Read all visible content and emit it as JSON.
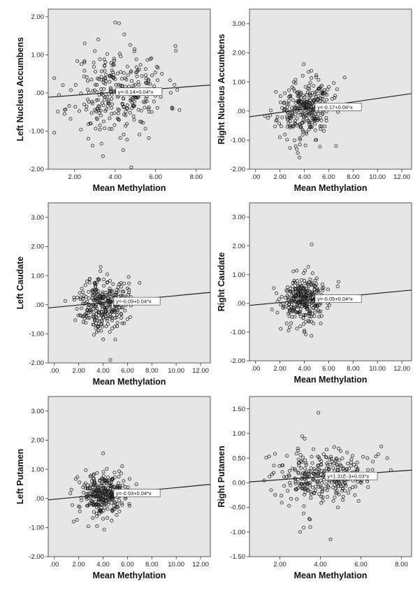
{
  "figure": {
    "background": "#ffffff",
    "plot_background": "#e6e6e6",
    "point_color": "#1a1a1a",
    "line_color": "#222222"
  },
  "chart_data": [
    {
      "type": "scatter",
      "id": "left-nucleus-accumbens",
      "xlabel": "Mean Methylation",
      "ylabel": "Left Nucleus Accumbens",
      "xlim": [
        0.7,
        8.7
      ],
      "ylim": [
        -2.0,
        2.2
      ],
      "xticks": [
        2,
        4,
        6,
        8
      ],
      "xtick_labels": [
        "2.00",
        "4.00",
        "6.00",
        "8.00"
      ],
      "yticks": [
        -2,
        -1,
        0,
        1,
        2
      ],
      "ytick_labels": [
        "-2.00",
        "-1.00",
        ".00",
        "1.00",
        "2.00"
      ],
      "fit": {
        "intercept": -0.14,
        "slope": 0.04,
        "label": "y=-0.14+0.04*x",
        "label_at_x": 4.1
      },
      "cloud": {
        "n": 300,
        "x_mean": 4.2,
        "x_sd": 1.2,
        "y_sd": 0.55,
        "seed": 11
      },
      "outliers": [
        [
          4.0,
          1.85
        ],
        [
          4.2,
          1.83
        ],
        [
          2.5,
          1.3
        ],
        [
          4.4,
          -1.5
        ],
        [
          4.8,
          -1.95
        ],
        [
          3.0,
          1.1
        ]
      ]
    },
    {
      "type": "scatter",
      "id": "right-nucleus-accumbens",
      "xlabel": "Mean Methylation",
      "ylabel": "Right Nucleus Accumbens",
      "xlim": [
        -0.5,
        12.8
      ],
      "ylim": [
        -2.0,
        3.5
      ],
      "xticks": [
        0,
        2,
        4,
        6,
        8,
        10,
        12
      ],
      "xtick_labels": [
        ".00",
        "2.00",
        "4.00",
        "6.00",
        "8.00",
        "10.00",
        "12.00"
      ],
      "yticks": [
        -2,
        -1,
        0,
        1,
        2,
        3
      ],
      "ytick_labels": [
        "-2.00",
        "-1.00",
        ".00",
        "1.00",
        "2.00",
        "3.00"
      ],
      "fit": {
        "intercept": -0.17,
        "slope": 0.06,
        "label": "y=-0.17+0.06*x",
        "label_at_x": 5.0
      },
      "cloud": {
        "n": 300,
        "x_mean": 4.0,
        "x_sd": 1.1,
        "y_sd": 0.5,
        "seed": 23
      },
      "outliers": [
        [
          3.6,
          -1.6
        ],
        [
          6.6,
          -1.2
        ],
        [
          7.3,
          1.15
        ],
        [
          2.0,
          -0.9
        ]
      ]
    },
    {
      "type": "scatter",
      "id": "left-caudate",
      "xlabel": "Mean Methylation",
      "ylabel": "Left Caudate",
      "xlim": [
        -0.5,
        12.8
      ],
      "ylim": [
        -2.0,
        3.5
      ],
      "xticks": [
        0,
        2,
        4,
        6,
        8,
        10,
        12
      ],
      "xtick_labels": [
        ".00",
        "2.00",
        "4.00",
        "6.00",
        "8.00",
        "10.00",
        "12.00"
      ],
      "yticks": [
        -2,
        -1,
        0,
        1,
        2,
        3
      ],
      "ytick_labels": [
        "-2.00",
        "-1.00",
        ".00",
        "1.00",
        "2.00",
        "3.00"
      ],
      "fit": {
        "intercept": -0.09,
        "slope": 0.04,
        "label": "y=-0.09+0.04*x",
        "label_at_x": 5.0
      },
      "cloud": {
        "n": 300,
        "x_mean": 4.0,
        "x_sd": 1.0,
        "y_sd": 0.45,
        "seed": 37
      },
      "outliers": [
        [
          3.8,
          1.3
        ],
        [
          4.6,
          -1.9
        ],
        [
          7.0,
          0.75
        ],
        [
          5.0,
          -1.2
        ]
      ]
    },
    {
      "type": "scatter",
      "id": "right-caudate",
      "xlabel": "Mean Methylation",
      "ylabel": "Right Caudate",
      "xlim": [
        -0.5,
        12.8
      ],
      "ylim": [
        -2.0,
        3.5
      ],
      "xticks": [
        0,
        2,
        4,
        6,
        8,
        10,
        12
      ],
      "xtick_labels": [
        ".00",
        "2.00",
        "4.00",
        "6.00",
        "8.00",
        "10.00",
        "12.00"
      ],
      "yticks": [
        -2,
        -1,
        0,
        1,
        2,
        3
      ],
      "ytick_labels": [
        "-2.00",
        "-1.00",
        ".00",
        "1.00",
        "2.00",
        "3.00"
      ],
      "fit": {
        "intercept": -0.05,
        "slope": 0.04,
        "label": "y=-0.05+0.04*x",
        "label_at_x": 5.0
      },
      "cloud": {
        "n": 300,
        "x_mean": 4.0,
        "x_sd": 1.0,
        "y_sd": 0.42,
        "seed": 53
      },
      "outliers": [
        [
          4.6,
          2.05
        ],
        [
          4.0,
          -0.95
        ],
        [
          6.8,
          0.75
        ]
      ]
    },
    {
      "type": "scatter",
      "id": "left-putamen",
      "xlabel": "Mean Methylation",
      "ylabel": "Left Putamen",
      "xlim": [
        -0.5,
        12.8
      ],
      "ylim": [
        -2.0,
        3.5
      ],
      "xticks": [
        0,
        2,
        4,
        6,
        8,
        10,
        12
      ],
      "xtick_labels": [
        ".00",
        "2.00",
        "4.00",
        "6.00",
        "8.00",
        "10.00",
        "12.00"
      ],
      "yticks": [
        -2,
        -1,
        0,
        1,
        2,
        3
      ],
      "ytick_labels": [
        "-2.00",
        "-1.00",
        ".00",
        "1.00",
        "2.00",
        "3.00"
      ],
      "fit": {
        "intercept": -0.03,
        "slope": 0.04,
        "label": "y=-0.03+0.04*x",
        "label_at_x": 5.0
      },
      "cloud": {
        "n": 300,
        "x_mean": 4.0,
        "x_sd": 1.0,
        "y_sd": 0.38,
        "seed": 71
      },
      "outliers": [
        [
          4.0,
          1.55
        ],
        [
          3.5,
          -0.95
        ],
        [
          1.4,
          0.3
        ]
      ]
    },
    {
      "type": "scatter",
      "id": "right-putamen",
      "xlabel": "Mean Methylation",
      "ylabel": "Right Putamen",
      "xlim": [
        0.5,
        8.5
      ],
      "ylim": [
        -1.5,
        1.75
      ],
      "xticks": [
        2,
        4,
        6,
        8
      ],
      "xtick_labels": [
        "2.00",
        "4.00",
        "6.00",
        "8.00"
      ],
      "yticks": [
        -1.5,
        -1,
        -0.5,
        0,
        0.5,
        1,
        1.5
      ],
      "ytick_labels": [
        "-1.50",
        "-1.00",
        "-0.50",
        "0.00",
        "0.50",
        "1.00",
        "1.50"
      ],
      "fit": {
        "intercept": 0.00131,
        "slope": 0.03,
        "label": "y=1.31E-3+0.03*x",
        "label_at_x": 4.3
      },
      "cloud": {
        "n": 320,
        "x_mean": 4.2,
        "x_sd": 1.2,
        "y_sd": 0.28,
        "seed": 89
      },
      "outliers": [
        [
          3.9,
          1.42
        ],
        [
          4.5,
          -1.15
        ],
        [
          3.5,
          -0.9
        ],
        [
          3.0,
          -1.0
        ],
        [
          7.3,
          0.5
        ]
      ]
    }
  ]
}
